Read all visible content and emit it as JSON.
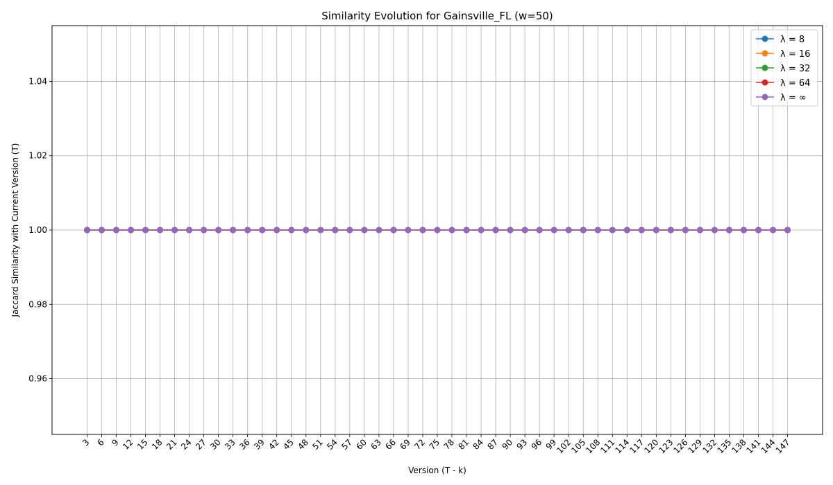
{
  "chart_data": {
    "type": "line",
    "title": "Similarity Evolution for Gainsville_FL (w=50)",
    "xlabel": "Version (T - k)",
    "ylabel": "Jaccard Similarity with Current Version (T)",
    "x": [
      3,
      6,
      9,
      12,
      15,
      18,
      21,
      24,
      27,
      30,
      33,
      36,
      39,
      42,
      45,
      48,
      51,
      54,
      57,
      60,
      63,
      66,
      69,
      72,
      75,
      78,
      81,
      84,
      87,
      90,
      93,
      96,
      99,
      102,
      105,
      108,
      111,
      114,
      117,
      120,
      123,
      126,
      129,
      132,
      135,
      138,
      141,
      144,
      147
    ],
    "ylim": [
      0.945,
      1.055
    ],
    "yticks": [
      "0.96",
      "0.98",
      "1.00",
      "1.02",
      "1.04"
    ],
    "grid": true,
    "legend_position": "top-right",
    "series": [
      {
        "name": "λ = 8",
        "color": "#1f77b4",
        "values": [
          1,
          1,
          1,
          1,
          1,
          1,
          1,
          1,
          1,
          1,
          1,
          1,
          1,
          1,
          1,
          1,
          1,
          1,
          1,
          1,
          1,
          1,
          1,
          1,
          1,
          1,
          1,
          1,
          1,
          1,
          1,
          1,
          1,
          1,
          1,
          1,
          1,
          1,
          1,
          1,
          1,
          1,
          1,
          1,
          1,
          1,
          1,
          1,
          1
        ]
      },
      {
        "name": "λ = 16",
        "color": "#ff7f0e",
        "values": [
          1,
          1,
          1,
          1,
          1,
          1,
          1,
          1,
          1,
          1,
          1,
          1,
          1,
          1,
          1,
          1,
          1,
          1,
          1,
          1,
          1,
          1,
          1,
          1,
          1,
          1,
          1,
          1,
          1,
          1,
          1,
          1,
          1,
          1,
          1,
          1,
          1,
          1,
          1,
          1,
          1,
          1,
          1,
          1,
          1,
          1,
          1,
          1,
          1
        ]
      },
      {
        "name": "λ = 32",
        "color": "#2ca02c",
        "values": [
          1,
          1,
          1,
          1,
          1,
          1,
          1,
          1,
          1,
          1,
          1,
          1,
          1,
          1,
          1,
          1,
          1,
          1,
          1,
          1,
          1,
          1,
          1,
          1,
          1,
          1,
          1,
          1,
          1,
          1,
          1,
          1,
          1,
          1,
          1,
          1,
          1,
          1,
          1,
          1,
          1,
          1,
          1,
          1,
          1,
          1,
          1,
          1,
          1
        ]
      },
      {
        "name": "λ = 64",
        "color": "#d62728",
        "values": [
          1,
          1,
          1,
          1,
          1,
          1,
          1,
          1,
          1,
          1,
          1,
          1,
          1,
          1,
          1,
          1,
          1,
          1,
          1,
          1,
          1,
          1,
          1,
          1,
          1,
          1,
          1,
          1,
          1,
          1,
          1,
          1,
          1,
          1,
          1,
          1,
          1,
          1,
          1,
          1,
          1,
          1,
          1,
          1,
          1,
          1,
          1,
          1,
          1
        ]
      },
      {
        "name": "λ = ∞",
        "color": "#9467bd",
        "values": [
          1,
          1,
          1,
          1,
          1,
          1,
          1,
          1,
          1,
          1,
          1,
          1,
          1,
          1,
          1,
          1,
          1,
          1,
          1,
          1,
          1,
          1,
          1,
          1,
          1,
          1,
          1,
          1,
          1,
          1,
          1,
          1,
          1,
          1,
          1,
          1,
          1,
          1,
          1,
          1,
          1,
          1,
          1,
          1,
          1,
          1,
          1,
          1,
          1
        ]
      }
    ]
  }
}
